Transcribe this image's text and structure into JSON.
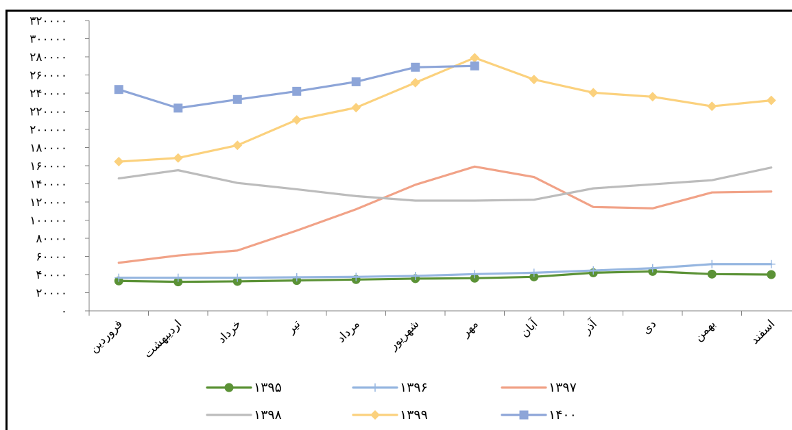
{
  "chart_data": {
    "type": "line",
    "categories": [
      "فروردین",
      "اردیبهشت",
      "خرداد",
      "تیر",
      "مرداد",
      "شهریور",
      "مهر",
      "آبان",
      "آذر",
      "دی",
      "بهمن",
      "اسفند"
    ],
    "y_tick_values": [
      0,
      20000,
      40000,
      60000,
      80000,
      100000,
      120000,
      140000,
      160000,
      180000,
      200000,
      220000,
      240000,
      260000,
      280000,
      300000,
      320000
    ],
    "y_tick_labels": [
      "۰",
      "۲۰۰۰۰",
      "۴۰۰۰۰",
      "۶۰۰۰۰",
      "۸۰۰۰۰",
      "۱۰۰۰۰۰",
      "۱۲۰۰۰۰",
      "۱۴۰۰۰۰",
      "۱۶۰۰۰۰",
      "۱۸۰۰۰۰",
      "۲۰۰۰۰۰",
      "۲۲۰۰۰۰",
      "۲۴۰۰۰۰",
      "۲۶۰۰۰۰",
      "۲۸۰۰۰۰",
      "۳۰۰۰۰۰",
      "۳۲۰۰۰۰"
    ],
    "ylim": [
      0,
      320000
    ],
    "grid": false,
    "legend_position": "bottom",
    "series": [
      {
        "name": "۱۳۹۵",
        "color": "#5b9236",
        "marker": "circle",
        "values": [
          33000,
          32000,
          32500,
          33500,
          34500,
          35500,
          36000,
          37500,
          42000,
          43500,
          40500,
          40000
        ]
      },
      {
        "name": "۱۳۹۶",
        "color": "#96b6e0",
        "marker": "plus",
        "values": [
          36500,
          36500,
          36500,
          37000,
          37500,
          38500,
          40500,
          42000,
          44500,
          47000,
          51500,
          51500
        ]
      },
      {
        "name": "۱۳۹۷",
        "color": "#f1a287",
        "marker": "none",
        "values": [
          53000,
          61000,
          66500,
          88500,
          112000,
          139000,
          159000,
          147500,
          114500,
          113000,
          130500,
          131500
        ]
      },
      {
        "name": "۱۳۹۸",
        "color": "#bcbcbc",
        "marker": "none",
        "values": [
          146000,
          155000,
          141000,
          134000,
          126500,
          121500,
          121500,
          122500,
          135000,
          139500,
          144000,
          158000
        ]
      },
      {
        "name": "۱۳۹۹",
        "color": "#fbd17d",
        "marker": "diamond",
        "values": [
          164500,
          168500,
          182500,
          210500,
          224000,
          251500,
          279000,
          255000,
          240500,
          236000,
          225500,
          232000
        ]
      },
      {
        "name": "۱۴۰۰",
        "color": "#8da5d8",
        "marker": "square",
        "values": [
          244000,
          223500,
          233000,
          242000,
          252500,
          268500,
          270000,
          null,
          null,
          null,
          null,
          null
        ]
      }
    ]
  }
}
